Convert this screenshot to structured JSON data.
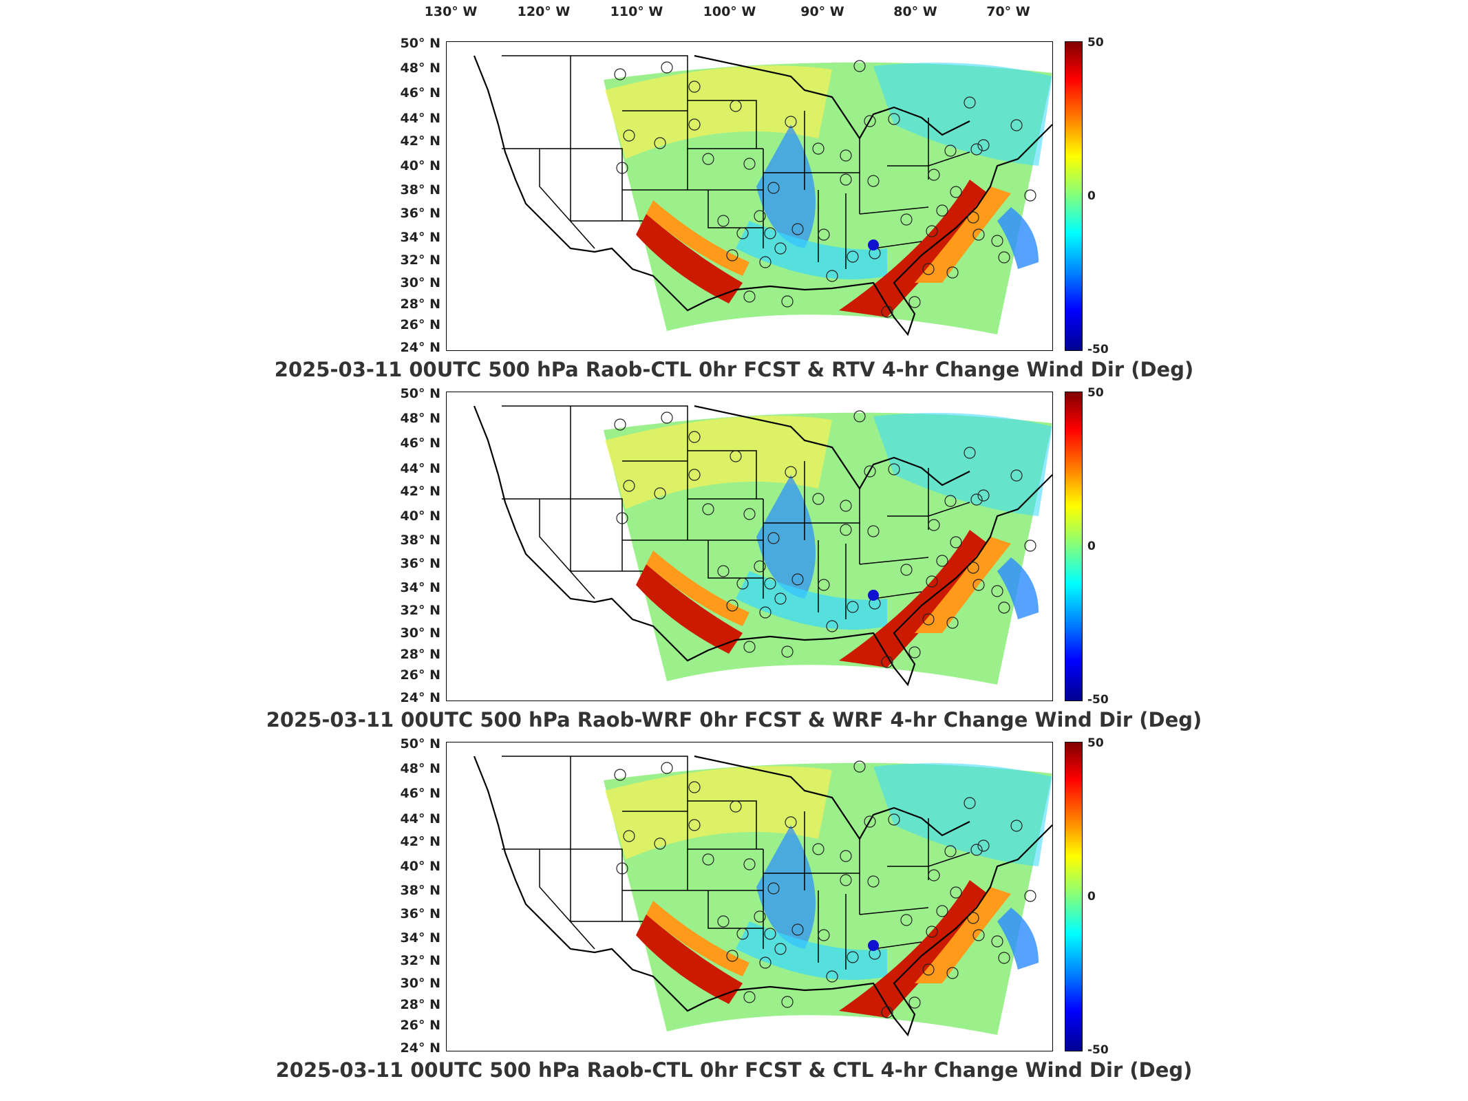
{
  "longitude_labels": [
    "130° W",
    "120° W",
    "110° W",
    "100° W",
    "90° W",
    "80° W",
    "70° W"
  ],
  "latitude_labels": [
    "50° N",
    "48° N",
    "46° N",
    "44° N",
    "42° N",
    "40° N",
    "38° N",
    "36° N",
    "34° N",
    "32° N",
    "30° N",
    "28° N",
    "26° N",
    "24° N"
  ],
  "colorbar": {
    "max_label": "50",
    "mid_label": "0",
    "min_label": "-50",
    "colors": [
      "#800000",
      "#ff0000",
      "#ff8000",
      "#ffff00",
      "#80ff80",
      "#00ffff",
      "#0080ff",
      "#0000ff",
      "#00008f"
    ]
  },
  "panels": [
    {
      "title": "2025-03-11 00UTC 500 hPa Raob-CTL 0hr FCST & RTV 4-hr Change Wind Dir (Deg)"
    },
    {
      "title": "2025-03-11 00UTC 500 hPa Raob-WRF 0hr FCST & WRF 4-hr Change Wind Dir (Deg)"
    },
    {
      "title": "2025-03-11 00UTC 500 hPa Raob-CTL 0hr FCST & CTL 4-hr Change Wind Dir (Deg)"
    }
  ],
  "field_colors": {
    "background": "#9cf08c",
    "band_red": "#cc1a00",
    "band_orange": "#ff9a1a",
    "band_yellow": "#f2f25a",
    "band_blue": "#2a8cff",
    "band_cyan": "#38d8ff",
    "station_marker_filled": "#1010d0"
  }
}
